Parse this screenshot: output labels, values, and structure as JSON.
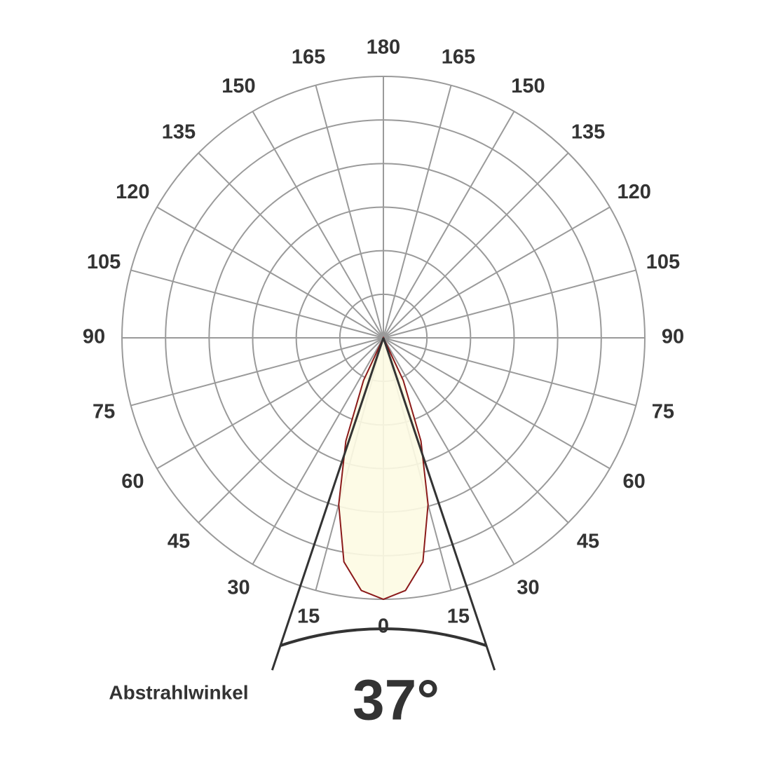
{
  "chart_data": {
    "type": "polar",
    "angle_ticks": [
      0,
      15,
      30,
      45,
      60,
      75,
      90,
      105,
      120,
      135,
      150,
      165,
      180
    ],
    "angles": [
      0,
      5,
      10,
      15,
      20,
      25,
      30
    ],
    "values": [
      1.0,
      0.97,
      0.87,
      0.66,
      0.42,
      0.18,
      0
    ],
    "rlim": [
      0,
      1
    ],
    "color": "#8b1a1a",
    "fill": "#fdfbe3",
    "grid": true,
    "beam_angle": {
      "value": 37,
      "label": "37°"
    },
    "beam_label": "Abstrahlwinkel"
  }
}
